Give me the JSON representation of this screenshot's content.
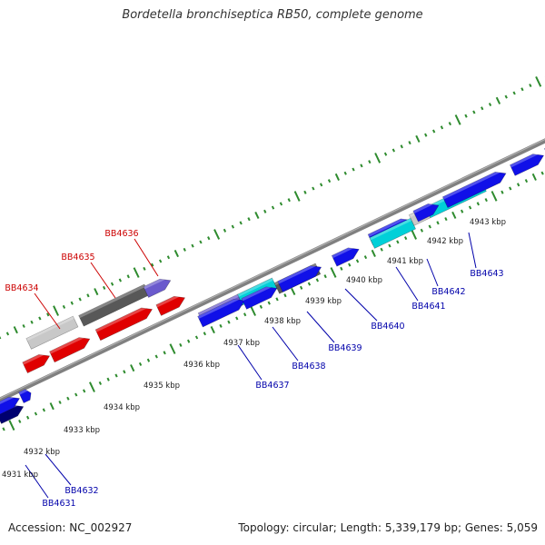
{
  "title": "Bordetella bronchiseptica RB50, complete genome",
  "footer": {
    "accession": "Accession: NC_002927",
    "stats": "Topology: circular; Length: 5,339,179 bp; Genes: 5,059"
  },
  "colors": {
    "backbone": "#808080",
    "tick": "#2e8b2e",
    "forward_label": "#cc0000",
    "reverse_label": "#0000aa",
    "red": "#e00000",
    "blue": "#1010e8",
    "navy": "#000070",
    "lavender": "#6a5acd",
    "dark_gray": "#585858",
    "light_gray": "#c8c8c8",
    "cyan": "#00d0d8"
  },
  "scale": {
    "unit": "kbp",
    "labels": [
      "4931 kbp",
      "4932 kbp",
      "4933 kbp",
      "4934 kbp",
      "4935 kbp",
      "4936 kbp",
      "4937 kbp",
      "4938 kbp",
      "4939 kbp",
      "4940 kbp",
      "4941 kbp",
      "4942 kbp",
      "4943 kbp"
    ]
  },
  "gene_labels": {
    "forward": [
      "BB4634",
      "BB4635",
      "BB4636"
    ],
    "reverse": [
      "BB4631",
      "BB4632",
      "BB4637",
      "BB4638",
      "BB4639",
      "BB4640",
      "BB4641",
      "BB4642",
      "BB4643"
    ]
  }
}
